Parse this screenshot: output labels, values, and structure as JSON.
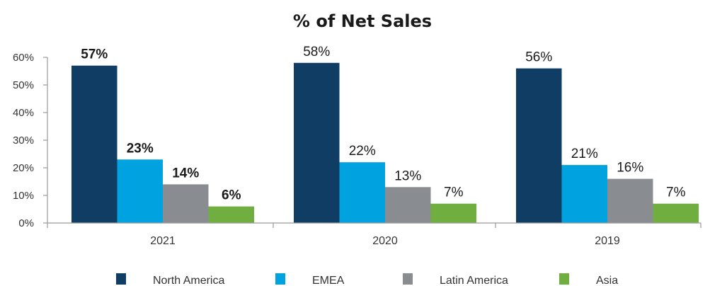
{
  "chart_data": {
    "type": "bar",
    "title": "% of Net Sales",
    "categories": [
      "2021",
      "2020",
      "2019"
    ],
    "series": [
      {
        "name": "North America",
        "color": "#0f3d64",
        "values": [
          57,
          58,
          56
        ],
        "labels": [
          "57%",
          "58%",
          "56%"
        ]
      },
      {
        "name": "EMEA",
        "color": "#00a3e0",
        "values": [
          23,
          22,
          21
        ],
        "labels": [
          "23%",
          "22%",
          "21%"
        ]
      },
      {
        "name": "Latin America",
        "color": "#898d92",
        "values": [
          14,
          13,
          16
        ],
        "labels": [
          "14%",
          "13%",
          "16%"
        ]
      },
      {
        "name": "Asia",
        "color": "#6fae3f",
        "values": [
          6,
          7,
          7
        ],
        "labels": [
          "6%",
          "7%",
          "7%"
        ]
      }
    ],
    "bold_label_categories": [
      "2021"
    ],
    "ylim": [
      0,
      60
    ],
    "yticks": [
      0,
      10,
      20,
      30,
      40,
      50,
      60
    ],
    "ytick_labels": [
      "0%",
      "10%",
      "20%",
      "30%",
      "40%",
      "50%",
      "60%"
    ],
    "grid": false,
    "legend_position": "bottom"
  }
}
